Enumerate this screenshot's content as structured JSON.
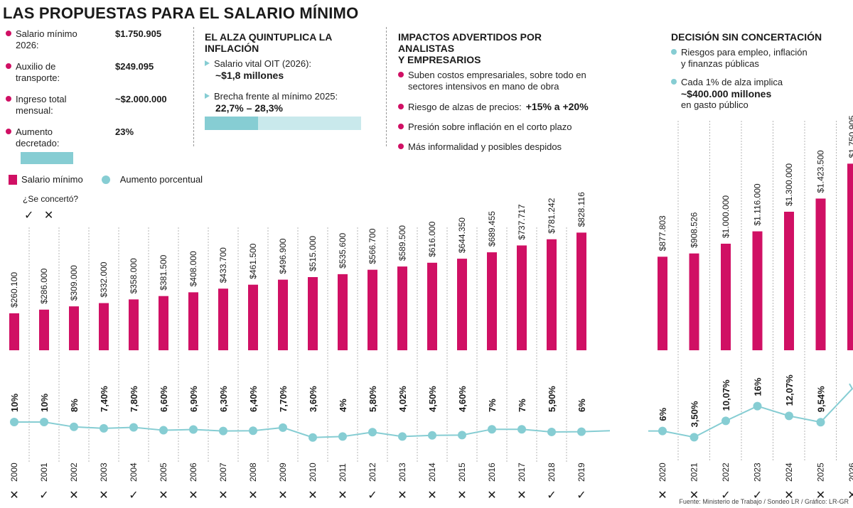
{
  "title": "LAS PROPUESTAS PARA EL SALARIO MÍNIMO",
  "panel1": {
    "items": [
      {
        "label": "Salario mínimo 2026:",
        "value": "$1.750.905"
      },
      {
        "label": "Auxilio de transporte:",
        "value": "$249.095"
      },
      {
        "label": "Ingreso total mensual:",
        "value": "~$2.000.000"
      },
      {
        "label": "Aumento decretado:",
        "value": "23%"
      }
    ],
    "bar_fill_fraction": 1.0
  },
  "panel2": {
    "heading": "EL ALZA QUINTUPLICA LA INFLACIÓN",
    "item1_label": "Salario vital OIT (2026):",
    "item1_value": "~$1,8 millones",
    "item2_label": "Brecha frente al mínimo 2025:",
    "item2_value": "22,7% – 28,3%",
    "bar_fill_fraction": 0.34
  },
  "panel3": {
    "heading_line1": "IMPACTOS ADVERTIDOS POR ANALISTAS",
    "heading_line2": "Y EMPRESARIOS",
    "item1_line1": "Suben costos empresariales, sobre todo en",
    "item1_line2": "sectores intensivos en mano de obra",
    "item2_label": "Riesgo de alzas de precios:",
    "item2_value": "+15% a +20%",
    "item3": "Presión sobre inflación  en el corto plazo",
    "item4": "Más informalidad y posibles despidos"
  },
  "panel4": {
    "heading": "DECISIÓN SIN CONCERTACIÓN",
    "item1_line1": "Riesgos para empleo, inflación",
    "item1_line2": "y finanzas públicas",
    "item2_line1": "Cada 1% de alza implica",
    "item2_value": "~$400.000 millones",
    "item2_line3": "en gasto público"
  },
  "legend": {
    "bar_label": "Salario mínimo",
    "line_label": "Aumento porcentual",
    "question": "¿Se concertó?",
    "yes_symbol": "✓",
    "no_symbol": "✕"
  },
  "source": "Fuente: Ministerio de Trabajo / Sondeo LR / Gráfico: LR-GR",
  "colors": {
    "bar": "#d01064",
    "line": "#86cdd3",
    "bar_light": "#c9e9ec"
  },
  "chart_data": {
    "type": "bar",
    "title": "LAS PROPUESTAS PARA EL SALARIO MÍNIMO",
    "xlabel": "",
    "ylabel": "",
    "categories": [
      "2000",
      "2001",
      "2002",
      "2003",
      "2004",
      "2005",
      "2006",
      "2007",
      "2008",
      "2009",
      "2010",
      "2011",
      "2012",
      "2013",
      "2014",
      "2015",
      "2016",
      "2017",
      "2018",
      "2019",
      "2020",
      "2021",
      "2022",
      "2023",
      "2024",
      "2025",
      "2026"
    ],
    "series": [
      {
        "name": "Salario mínimo",
        "values": [
          260100,
          286000,
          309000,
          332000,
          358000,
          381500,
          408000,
          433700,
          461500,
          496900,
          515000,
          535600,
          566700,
          589500,
          616000,
          644350,
          689455,
          737717,
          781242,
          828116,
          877803,
          908526,
          1000000,
          1116000,
          1300000,
          1423500,
          1750905
        ],
        "labels": [
          "$260.100",
          "$286.000",
          "$309.000",
          "$332.000",
          "$358.000",
          "$381.500",
          "$408.000",
          "$433.700",
          "$461.500",
          "$496.900",
          "$515.000",
          "$535.600",
          "$566.700",
          "$589.500",
          "$616.000",
          "$644.350",
          "$689.455",
          "$737.717",
          "$781.242",
          "$828.116",
          "$877.803",
          "$908.526",
          "$1.000.000",
          "$1.116.000",
          "$1.300.000",
          "$1.423.500",
          "$1.750.905"
        ]
      },
      {
        "name": "Aumento porcentual",
        "type": "line",
        "values": [
          10,
          10,
          8,
          7.4,
          7.8,
          6.6,
          6.9,
          6.3,
          6.4,
          7.7,
          3.6,
          4,
          5.8,
          4.02,
          4.5,
          4.6,
          7,
          7,
          5.9,
          6,
          6,
          3.5,
          10.07,
          16,
          12.07,
          9.54,
          23
        ],
        "labels": [
          "10%",
          "10%",
          "8%",
          "7,40%",
          "7,80%",
          "6,60%",
          "6,90%",
          "6,30%",
          "6,40%",
          "7,70%",
          "3,60%",
          "4%",
          "5,80%",
          "4,02%",
          "4,50%",
          "4,60%",
          "7%",
          "7%",
          "5,90%",
          "6%",
          "6%",
          "3,50%",
          "10,07%",
          "16%",
          "12,07%",
          "9,54%",
          "23%"
        ]
      }
    ],
    "concertado": [
      false,
      true,
      false,
      false,
      true,
      false,
      false,
      false,
      false,
      false,
      false,
      false,
      true,
      false,
      false,
      false,
      false,
      false,
      true,
      true,
      false,
      false,
      true,
      true,
      false,
      false,
      false
    ],
    "groups": [
      {
        "name": "2000-2019",
        "years": [
          "2000",
          "2019"
        ]
      },
      {
        "name": "2020-2026",
        "years": [
          "2020",
          "2026"
        ]
      }
    ],
    "legend": [
      "Salario mínimo",
      "Aumento porcentual"
    ]
  }
}
